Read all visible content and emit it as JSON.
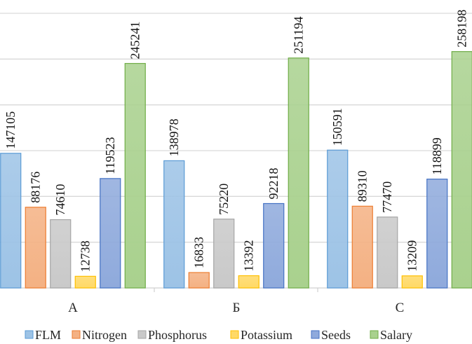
{
  "chart_data": {
    "type": "bar",
    "title": "",
    "xlabel": "",
    "ylabel": "",
    "categories": [
      "A",
      "Б",
      "C"
    ],
    "ylim": [
      0,
      300000
    ],
    "y_gridline_step": 50000,
    "grid": true,
    "y_axis_labels_visible": false,
    "legend_position": "bottom",
    "data_labels": "rotated-vertical",
    "series": [
      {
        "name": "FLM",
        "color": "#9DC3E6",
        "border": "#5B9BD5",
        "values": [
          147105,
          138978,
          150591
        ]
      },
      {
        "name": "Nitrogen",
        "color": "#F4B183",
        "border": "#ED7D31",
        "values": [
          88176,
          16833,
          89310
        ]
      },
      {
        "name": "Phosphorus",
        "color": "#C9C9C9",
        "border": "#A5A5A5",
        "values": [
          74610,
          75220,
          77470
        ]
      },
      {
        "name": "Potassium",
        "color": "#FFD966",
        "border": "#FFC000",
        "values": [
          12738,
          13392,
          13209
        ]
      },
      {
        "name": "Seeds",
        "color": "#8FAADC",
        "border": "#4472C4",
        "values": [
          119523,
          92218,
          118899
        ]
      },
      {
        "name": "Salary",
        "color": "#A9D18E",
        "border": "#70AD47",
        "values": [
          245241,
          251194,
          258198
        ]
      }
    ]
  }
}
